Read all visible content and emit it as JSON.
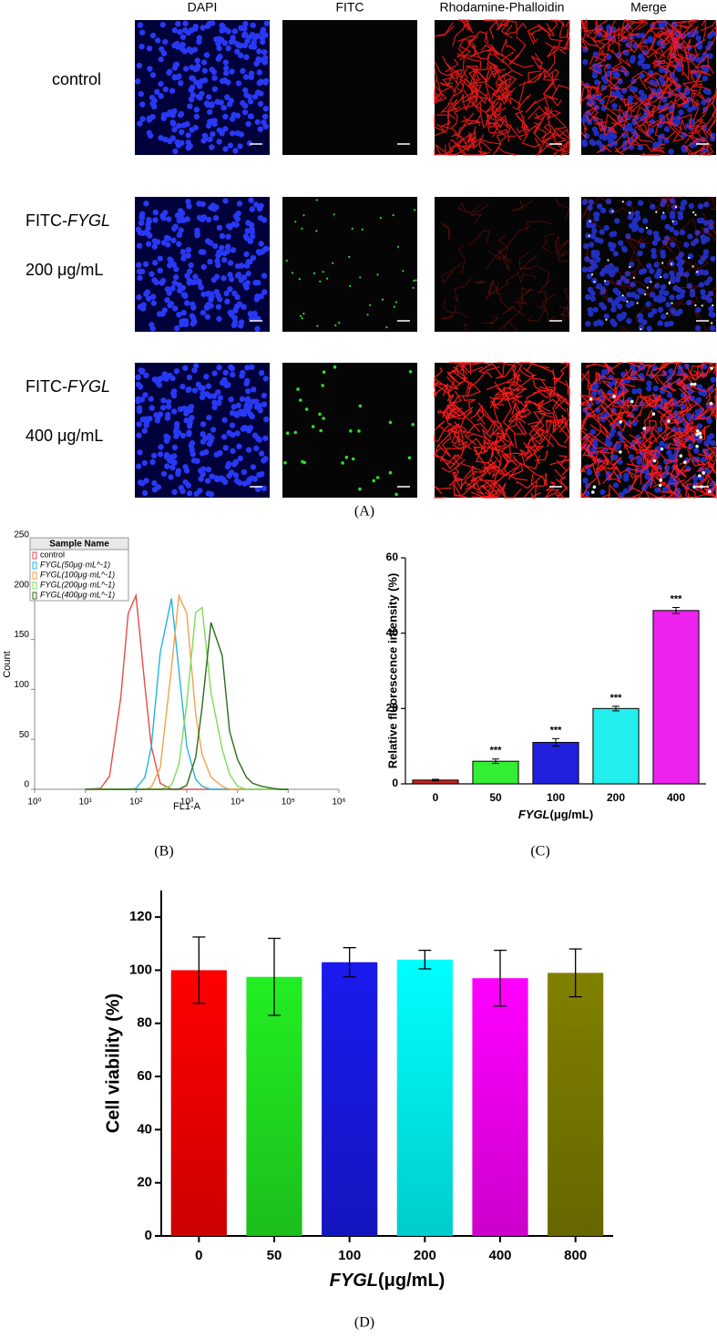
{
  "micrographs": {
    "columns": [
      "DAPI",
      "FITC",
      "Rhodamine-Phalloidin",
      "Merge"
    ],
    "rows": [
      {
        "label": "control"
      },
      {
        "prefix": "FITC-",
        "italic": "FYGL",
        "dose": "200 μg/mL"
      },
      {
        "prefix": "FITC-",
        "italic": "FYGL",
        "dose": "400 μg/mL"
      }
    ]
  },
  "panel_labels": [
    "(A)",
    "(B)",
    "(C)",
    "(D)"
  ],
  "chart_data": [
    {
      "type": "line",
      "log_x": true,
      "y_label": "Count",
      "x_label": "FL1-A",
      "legend_title": "Sample Name",
      "xlim": [
        1,
        1000000
      ],
      "ylim": [
        0,
        250
      ],
      "xticks": [
        {
          "value": 1,
          "label": "10⁰"
        },
        {
          "value": 10,
          "label": "10¹"
        },
        {
          "value": 100,
          "label": "10²"
        },
        {
          "value": 1000,
          "label": "10³"
        },
        {
          "value": 10000,
          "label": "10⁴"
        },
        {
          "value": 100000,
          "label": "10⁵"
        },
        {
          "value": 1000000,
          "label": "10⁶"
        }
      ],
      "yticks": [
        0,
        50,
        100,
        150,
        200,
        250
      ],
      "x": [
        10,
        20,
        30,
        50,
        70,
        100,
        150,
        200,
        300,
        500,
        700,
        1000,
        1500,
        2000,
        3000,
        5000,
        7000,
        10000,
        15000,
        20000,
        30000,
        50000,
        70000,
        100000
      ],
      "series": [
        {
          "name": "control",
          "color": "#e84a4a",
          "values": [
            0,
            1,
            13,
            92,
            176,
            194,
            103,
            43,
            6,
            0,
            0,
            0,
            0,
            0,
            0,
            0,
            0,
            0,
            0,
            0,
            0,
            0,
            0,
            0
          ]
        },
        {
          "name": "FYGL(50μg·mL^-1)",
          "color": "#22b5e0",
          "values": [
            0,
            0,
            0,
            0,
            0,
            1,
            12,
            43,
            137,
            191,
            119,
            43,
            10,
            3,
            0,
            0,
            0,
            0,
            0,
            0,
            0,
            0,
            0,
            0
          ]
        },
        {
          "name": "FYGL(100μg·mL^-1)",
          "color": "#f4a24a",
          "values": [
            0,
            0,
            0,
            0,
            0,
            0,
            0,
            2,
            22,
            121,
            194,
            176,
            75,
            35,
            12,
            3,
            0,
            0,
            0,
            0,
            0,
            0,
            0,
            0
          ]
        },
        {
          "name": "FYGL(200μg·mL^-1)",
          "color": "#7ddc5a",
          "values": [
            0,
            0,
            0,
            0,
            0,
            0,
            0,
            0,
            0,
            4,
            25,
            86,
            177,
            182,
            97,
            40,
            15,
            3,
            0,
            0,
            0,
            0,
            0,
            0
          ]
        },
        {
          "name": "FYGL(400μg·mL^-1)",
          "color": "#2e6b1a",
          "values": [
            0,
            0,
            0,
            0,
            0,
            0,
            0,
            0,
            0,
            0,
            0,
            4,
            32,
            82,
            167,
            134,
            58,
            30,
            12,
            6,
            3,
            1,
            0,
            0
          ]
        }
      ]
    },
    {
      "type": "bar",
      "y_label": "Relative fluorescence intensity (%)",
      "x_label": {
        "italic": "FYGL",
        "rest": "(μg/mL)"
      },
      "categories": [
        "0",
        "50",
        "100",
        "200",
        "400"
      ],
      "values": [
        1,
        6,
        11,
        20,
        46
      ],
      "errors": [
        0.2,
        0.6,
        1,
        0.6,
        0.8
      ],
      "annotations": [
        null,
        "***",
        "***",
        "***",
        "***"
      ],
      "colors": [
        "#cc2020",
        "#33ee33",
        "#2020dd",
        "#22eeee",
        "#ee22ee"
      ],
      "ylim": [
        0,
        60
      ],
      "yticks": [
        0,
        20,
        40,
        60
      ]
    },
    {
      "type": "bar",
      "gradient": true,
      "y_label": "Cell viability (%)",
      "x_label": {
        "italic": "FYGL",
        "rest": "(μg/mL)"
      },
      "categories": [
        "0",
        "50",
        "100",
        "200",
        "400",
        "800"
      ],
      "values": [
        100,
        97.5,
        103,
        104,
        97,
        99
      ],
      "errors": [
        12.5,
        14.5,
        5.5,
        3.5,
        10.5,
        9
      ],
      "colors": [
        "#ff0000",
        "#22ee22",
        "#1a1aee",
        "#00ffff",
        "#ff00ff",
        "#808000"
      ],
      "ylim": [
        0,
        130
      ],
      "yticks": [
        0,
        20,
        40,
        60,
        80,
        100,
        120
      ]
    }
  ]
}
